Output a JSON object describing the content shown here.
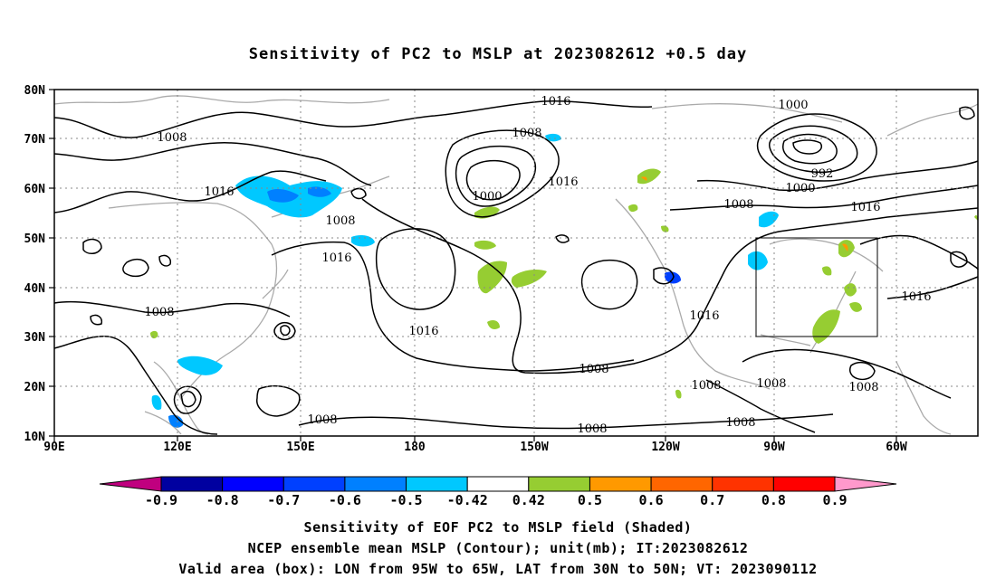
{
  "title": "Sensitivity of PC2 to MSLP at 2023082612 +0.5 day",
  "map": {
    "lat_labels": [
      "80N",
      "70N",
      "60N",
      "50N",
      "40N",
      "30N",
      "20N",
      "10N"
    ],
    "lon_labels": [
      "90E",
      "120E",
      "150E",
      "180",
      "150W",
      "120W",
      "90W",
      "60W"
    ],
    "contour_labels": [
      "1016",
      "1000",
      "1008",
      "1008",
      "1016",
      "1000",
      "992",
      "1000",
      "1016",
      "1008",
      "1008",
      "1016",
      "1016",
      "1008",
      "1016",
      "1016",
      "1016",
      "1008",
      "1008",
      "1008",
      "1008",
      "1008",
      "1008",
      "1008"
    ],
    "valid_box": {
      "lon_from": "95W",
      "lon_to": "65W",
      "lat_from": "30N",
      "lat_to": "50N"
    }
  },
  "colorbar": {
    "labels": [
      "-0.9",
      "-0.8",
      "-0.7",
      "-0.6",
      "-0.5",
      "-0.42",
      "0.42",
      "0.5",
      "0.6",
      "0.7",
      "0.8",
      "0.9"
    ],
    "colors": [
      "#0000a0",
      "#0000ff",
      "#0040ff",
      "#0080ff",
      "#00c8ff",
      "#ffffff",
      "#96cd32",
      "#ff9900",
      "#ff6600",
      "#ff3300",
      "#ff0000"
    ],
    "low_end_color": "#c0007f",
    "high_end_color": "#ff99cc"
  },
  "captions": {
    "line1": "Sensitivity of EOF PC2 to MSLP field (Shaded)",
    "line2": "NCEP ensemble mean MSLP (Contour); unit(mb); IT:2023082612",
    "line3": "Valid area (box): LON from 95W to 65W, LAT from 30N to 50N; VT: 2023090112"
  }
}
